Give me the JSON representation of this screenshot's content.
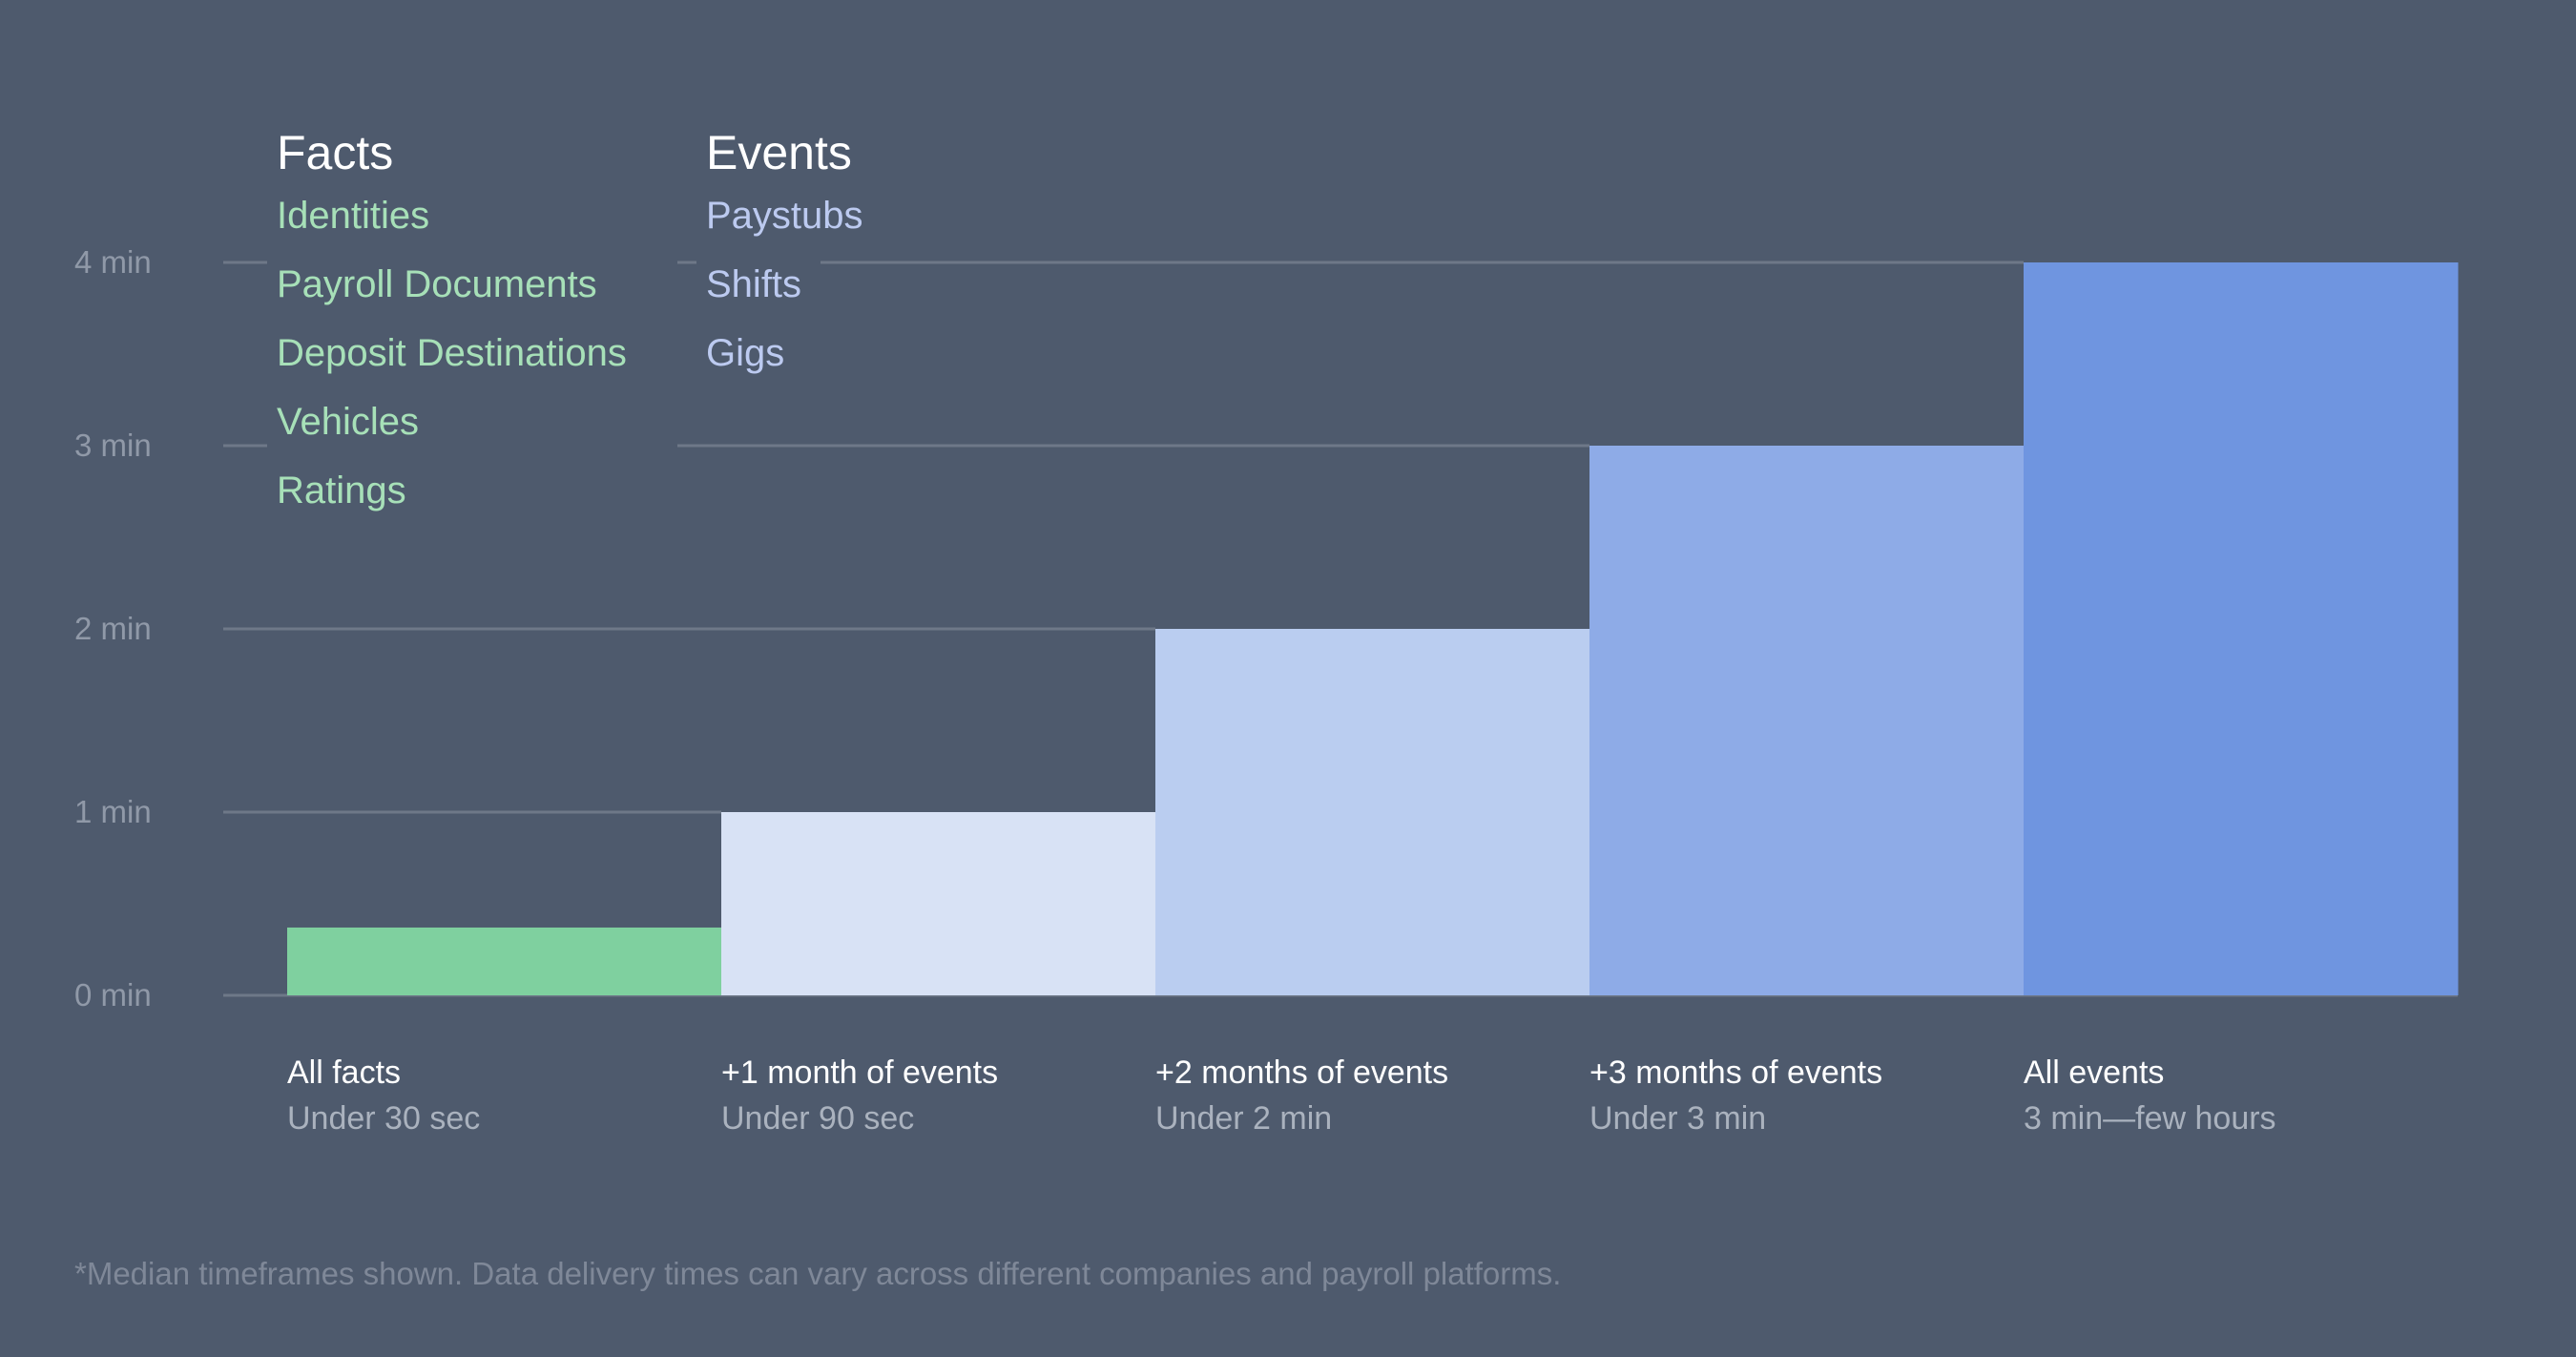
{
  "chart_data": {
    "type": "bar",
    "ylim": [
      0,
      4
    ],
    "yticks": [
      "0 min",
      "1 min",
      "2 min",
      "3 min",
      "4 min"
    ],
    "grid": true,
    "categories": [
      {
        "label": "All facts",
        "sublabel": "Under 30 sec"
      },
      {
        "label": "+1 month of events",
        "sublabel": "Under 90 sec"
      },
      {
        "label": "+2 months of events",
        "sublabel": "Under 2 min"
      },
      {
        "label": "+3 months of events",
        "sublabel": "Under 3 min"
      },
      {
        "label": "All events",
        "sublabel": "3 min—few hours"
      }
    ],
    "values": [
      0.37,
      1,
      2,
      3,
      4
    ],
    "colors": [
      "#7fd09f",
      "#d8e2f5",
      "#bacdf0",
      "#8eabe7",
      "#6f95e0"
    ]
  },
  "legend": {
    "facts": {
      "title": "Facts",
      "items": [
        "Identities",
        "Payroll Documents",
        "Deposit Destinations",
        "Vehicles",
        "Ratings"
      ],
      "color": "#a7e0b8"
    },
    "events": {
      "title": "Events",
      "items": [
        "Paystubs",
        "Shifts",
        "Gigs"
      ],
      "color": "#bccaf0"
    }
  },
  "footnote": "*Median timeframes shown. Data delivery times can vary across different companies and payroll platforms."
}
